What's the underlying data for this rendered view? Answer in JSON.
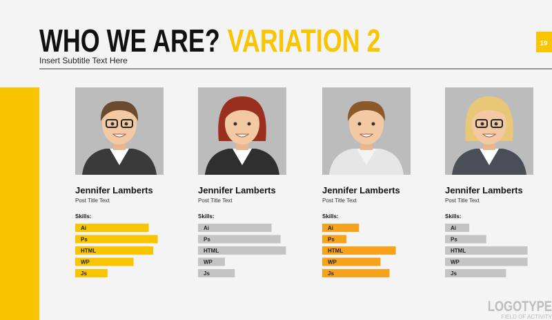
{
  "header": {
    "title_main": "WHO WE ARE?",
    "title_accent": "VARIATION 2",
    "subtitle": "Insert Subtitle Text Here",
    "page_number": "19"
  },
  "members": [
    {
      "name": "Jennifer Lamberts",
      "post": "Post Title Text",
      "skills_label": "Skills:",
      "color": "#f9c400",
      "skills": [
        {
          "label": "Ai",
          "value": 82
        },
        {
          "label": "Ps",
          "value": 92
        },
        {
          "label": "HTML",
          "value": 87
        },
        {
          "label": "WP",
          "value": 65
        },
        {
          "label": "Js",
          "value": 36
        }
      ]
    },
    {
      "name": "Jennifer Lamberts",
      "post": "Post Title Text",
      "skills_label": "Skills:",
      "color": "#c4c4c4",
      "skills": [
        {
          "label": "Ai",
          "value": 82
        },
        {
          "label": "Ps",
          "value": 92
        },
        {
          "label": "HTML",
          "value": 98
        },
        {
          "label": "WP",
          "value": 30
        },
        {
          "label": "Js",
          "value": 41
        }
      ]
    },
    {
      "name": "Jennifer Lamberts",
      "post": "Post Title Text",
      "skills_label": "Skills:",
      "color": "#f7a21b",
      "skills": [
        {
          "label": "Ai",
          "value": 41
        },
        {
          "label": "Ps",
          "value": 27
        },
        {
          "label": "HTML",
          "value": 82
        },
        {
          "label": "WP",
          "value": 65
        },
        {
          "label": "Js",
          "value": 75
        }
      ]
    },
    {
      "name": "Jennifer Lamberts",
      "post": "Post Title Text",
      "skills_label": "Skills:",
      "color": "#c4c4c4",
      "skills": [
        {
          "label": "Ai",
          "value": 27
        },
        {
          "label": "Ps",
          "value": 46
        },
        {
          "label": "HTML",
          "value": 92
        },
        {
          "label": "WP",
          "value": 92
        },
        {
          "label": "Js",
          "value": 68
        }
      ]
    }
  ],
  "footer": {
    "logo": "LOGOTYPE",
    "tagline": "FIELD OF ACTIVITY"
  }
}
